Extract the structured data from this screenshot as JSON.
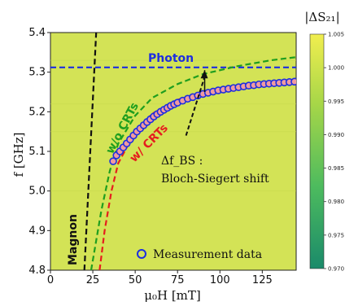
{
  "chart_data": {
    "type": "heatmap",
    "xlabel": "μ₀H [mT]",
    "ylabel": "f [GHz]",
    "xlim": [
      0,
      145
    ],
    "ylim": [
      4.8,
      5.4
    ],
    "x_ticks": [
      "0",
      "25",
      "50",
      "75",
      "100",
      "125"
    ],
    "y_ticks": [
      "4.8",
      "4.9",
      "5.0",
      "5.1",
      "5.2",
      "5.3",
      "5.4"
    ],
    "colorbar": {
      "title": "|ΔS₂₁|",
      "range": [
        0.97,
        1.005
      ],
      "ticks": [
        "1.005",
        "1.000",
        "0.995",
        "0.990",
        "0.985",
        "0.980",
        "0.975",
        "0.970"
      ],
      "colors": [
        "#1a8a6a",
        "#4dbb5e",
        "#a6d648",
        "#f1ee4f"
      ]
    },
    "background_color": "#d3e356",
    "series": [
      {
        "name": "Photon",
        "type": "line",
        "style": "dashed",
        "color": "#1d2ee0",
        "points": [
          [
            0,
            5.312
          ],
          [
            145,
            5.312
          ]
        ]
      },
      {
        "name": "Magnon",
        "type": "line",
        "style": "dashed",
        "color": "#111111",
        "points": [
          [
            20,
            4.8
          ],
          [
            27,
            5.4
          ]
        ]
      },
      {
        "name": "w/o CRTs",
        "type": "line",
        "style": "dashed",
        "color": "#1f9e1f",
        "points": [
          [
            24,
            4.8
          ],
          [
            30,
            4.95
          ],
          [
            35,
            5.05
          ],
          [
            40,
            5.12
          ],
          [
            50,
            5.19
          ],
          [
            60,
            5.235
          ],
          [
            75,
            5.27
          ],
          [
            90,
            5.295
          ],
          [
            110,
            5.315
          ],
          [
            130,
            5.33
          ],
          [
            145,
            5.338
          ]
        ]
      },
      {
        "name": "w/ CRTs",
        "type": "line",
        "style": "dashed",
        "color": "#e51e1e",
        "points": [
          [
            29,
            4.8
          ],
          [
            32,
            4.9
          ],
          [
            36,
            5.0
          ],
          [
            40,
            5.07
          ],
          [
            50,
            5.15
          ],
          [
            60,
            5.195
          ],
          [
            75,
            5.23
          ],
          [
            90,
            5.25
          ],
          [
            110,
            5.262
          ],
          [
            130,
            5.271
          ],
          [
            145,
            5.276
          ]
        ]
      },
      {
        "name": "Measurement data",
        "type": "scatter",
        "color": "#1d2ee0",
        "x": [
          37,
          39,
          41,
          43,
          45,
          47,
          49,
          51,
          53,
          55,
          57,
          59,
          61,
          63,
          65,
          67,
          69,
          71,
          73,
          75,
          78,
          81,
          84,
          87,
          90,
          93,
          96,
          99,
          102,
          105,
          108,
          111,
          114,
          117,
          120,
          123,
          126,
          129,
          132,
          135,
          138,
          141,
          144
        ],
        "y": [
          5.075,
          5.09,
          5.1,
          5.11,
          5.12,
          5.13,
          5.14,
          5.15,
          5.158,
          5.166,
          5.174,
          5.181,
          5.188,
          5.194,
          5.2,
          5.205,
          5.21,
          5.215,
          5.219,
          5.223,
          5.228,
          5.233,
          5.237,
          5.241,
          5.245,
          5.248,
          5.251,
          5.254,
          5.256,
          5.258,
          5.26,
          5.262,
          5.264,
          5.266,
          5.267,
          5.269,
          5.27,
          5.271,
          5.272,
          5.273,
          5.274,
          5.275,
          5.276
        ]
      }
    ],
    "annotations": [
      {
        "text": "Photon",
        "color": "#1d2ee0"
      },
      {
        "text": "w/o CRTs",
        "color": "#1f9e1f"
      },
      {
        "text": "w/ CRTs",
        "color": "#e51e1e"
      },
      {
        "text": "Magnon",
        "color": "#111111"
      },
      {
        "text": "Δf_BS :",
        "color": "#111111"
      },
      {
        "text": "Bloch-Siegert shift",
        "color": "#111111"
      }
    ],
    "legend": {
      "position": "bottom-right",
      "entries": [
        "Measurement data"
      ]
    }
  }
}
